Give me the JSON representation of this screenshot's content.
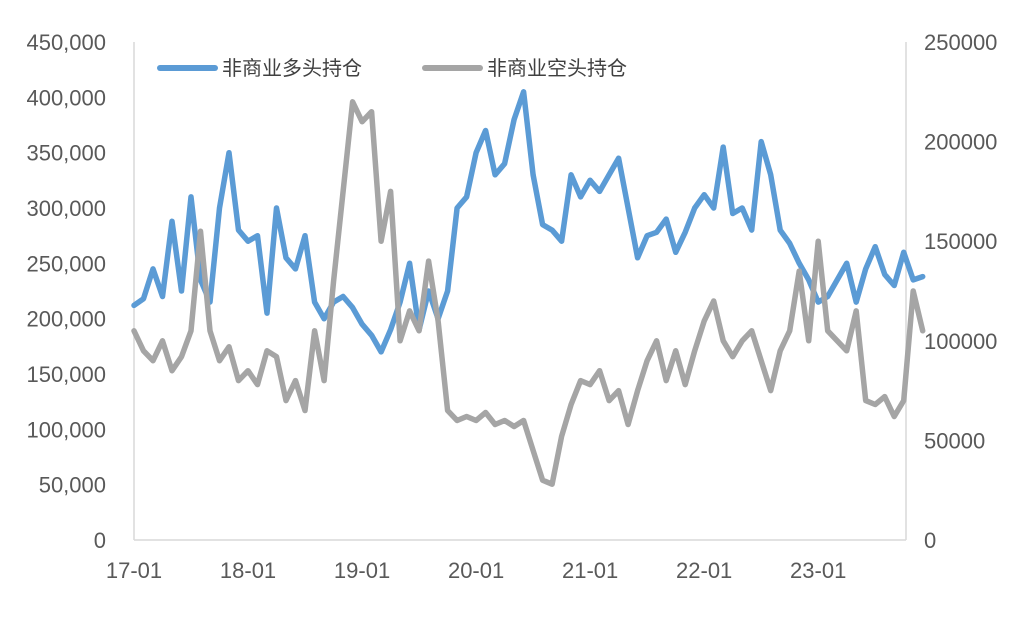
{
  "chart_data": {
    "type": "line",
    "title": "",
    "legend_position": "top-left",
    "grid": false,
    "x_ticks": [
      "17-01",
      "18-01",
      "19-01",
      "20-01",
      "21-01",
      "22-01",
      "23-01"
    ],
    "y_left": {
      "ylim": [
        0,
        450000
      ],
      "tick_labels": [
        "0",
        "50,000",
        "100,000",
        "150,000",
        "200,000",
        "250,000",
        "300,000",
        "350,000",
        "400,000",
        "450,000"
      ]
    },
    "y_right": {
      "ylim": [
        0,
        250000
      ],
      "tick_labels": [
        "0",
        "50000",
        "100000",
        "150000",
        "200000",
        "250000"
      ]
    },
    "series": [
      {
        "name": "非商业多头持仓",
        "axis": "left",
        "color": "#5B9BD5",
        "points": [
          [
            "2017-01",
            212000
          ],
          [
            "2017-02",
            218000
          ],
          [
            "2017-03",
            245000
          ],
          [
            "2017-04",
            220000
          ],
          [
            "2017-05",
            288000
          ],
          [
            "2017-06",
            225000
          ],
          [
            "2017-07",
            310000
          ],
          [
            "2017-08",
            235000
          ],
          [
            "2017-09",
            215000
          ],
          [
            "2017-10",
            300000
          ],
          [
            "2017-11",
            350000
          ],
          [
            "2017-12",
            280000
          ],
          [
            "2018-01",
            270000
          ],
          [
            "2018-02",
            275000
          ],
          [
            "2018-03",
            205000
          ],
          [
            "2018-04",
            300000
          ],
          [
            "2018-05",
            255000
          ],
          [
            "2018-06",
            245000
          ],
          [
            "2018-07",
            275000
          ],
          [
            "2018-08",
            215000
          ],
          [
            "2018-09",
            200000
          ],
          [
            "2018-10",
            215000
          ],
          [
            "2018-11",
            220000
          ],
          [
            "2018-12",
            210000
          ],
          [
            "2019-01",
            195000
          ],
          [
            "2019-02",
            185000
          ],
          [
            "2019-03",
            170000
          ],
          [
            "2019-04",
            190000
          ],
          [
            "2019-05",
            215000
          ],
          [
            "2019-06",
            250000
          ],
          [
            "2019-07",
            190000
          ],
          [
            "2019-08",
            225000
          ],
          [
            "2019-09",
            200000
          ],
          [
            "2019-10",
            225000
          ],
          [
            "2019-11",
            300000
          ],
          [
            "2019-12",
            310000
          ],
          [
            "2020-01",
            350000
          ],
          [
            "2020-02",
            370000
          ],
          [
            "2020-03",
            330000
          ],
          [
            "2020-04",
            340000
          ],
          [
            "2020-05",
            380000
          ],
          [
            "2020-06",
            405000
          ],
          [
            "2020-07",
            330000
          ],
          [
            "2020-08",
            285000
          ],
          [
            "2020-09",
            280000
          ],
          [
            "2020-10",
            270000
          ],
          [
            "2020-11",
            330000
          ],
          [
            "2020-12",
            310000
          ],
          [
            "2021-01",
            325000
          ],
          [
            "2021-02",
            315000
          ],
          [
            "2021-03",
            330000
          ],
          [
            "2021-04",
            345000
          ],
          [
            "2021-05",
            300000
          ],
          [
            "2021-06",
            255000
          ],
          [
            "2021-07",
            275000
          ],
          [
            "2021-08",
            278000
          ],
          [
            "2021-09",
            290000
          ],
          [
            "2021-10",
            260000
          ],
          [
            "2021-11",
            278000
          ],
          [
            "2021-12",
            300000
          ],
          [
            "2022-01",
            312000
          ],
          [
            "2022-02",
            300000
          ],
          [
            "2022-03",
            355000
          ],
          [
            "2022-04",
            295000
          ],
          [
            "2022-05",
            300000
          ],
          [
            "2022-06",
            280000
          ],
          [
            "2022-07",
            360000
          ],
          [
            "2022-08",
            330000
          ],
          [
            "2022-09",
            280000
          ],
          [
            "2022-10",
            268000
          ],
          [
            "2022-11",
            250000
          ],
          [
            "2022-12",
            235000
          ],
          [
            "2023-01",
            215000
          ],
          [
            "2023-02",
            220000
          ],
          [
            "2023-03",
            235000
          ],
          [
            "2023-04",
            250000
          ],
          [
            "2023-05",
            215000
          ],
          [
            "2023-06",
            245000
          ],
          [
            "2023-07",
            265000
          ],
          [
            "2023-08",
            240000
          ],
          [
            "2023-09",
            230000
          ],
          [
            "2023-10",
            260000
          ],
          [
            "2023-11",
            235000
          ],
          [
            "2023-12",
            238000
          ]
        ]
      },
      {
        "name": "非商业空头持仓",
        "axis": "right",
        "color": "#A5A5A5",
        "points": [
          [
            "2017-01",
            105000
          ],
          [
            "2017-02",
            95000
          ],
          [
            "2017-03",
            90000
          ],
          [
            "2017-04",
            100000
          ],
          [
            "2017-05",
            85000
          ],
          [
            "2017-06",
            92000
          ],
          [
            "2017-07",
            105000
          ],
          [
            "2017-08",
            155000
          ],
          [
            "2017-09",
            105000
          ],
          [
            "2017-10",
            90000
          ],
          [
            "2017-11",
            97000
          ],
          [
            "2017-12",
            80000
          ],
          [
            "2018-01",
            85000
          ],
          [
            "2018-02",
            78000
          ],
          [
            "2018-03",
            95000
          ],
          [
            "2018-04",
            92000
          ],
          [
            "2018-05",
            70000
          ],
          [
            "2018-06",
            80000
          ],
          [
            "2018-07",
            65000
          ],
          [
            "2018-08",
            105000
          ],
          [
            "2018-09",
            80000
          ],
          [
            "2018-10",
            130000
          ],
          [
            "2018-11",
            175000
          ],
          [
            "2018-12",
            220000
          ],
          [
            "2019-01",
            210000
          ],
          [
            "2019-02",
            215000
          ],
          [
            "2019-03",
            150000
          ],
          [
            "2019-04",
            175000
          ],
          [
            "2019-05",
            100000
          ],
          [
            "2019-06",
            115000
          ],
          [
            "2019-07",
            105000
          ],
          [
            "2019-08",
            140000
          ],
          [
            "2019-09",
            110000
          ],
          [
            "2019-10",
            65000
          ],
          [
            "2019-11",
            60000
          ],
          [
            "2019-12",
            62000
          ],
          [
            "2020-01",
            60000
          ],
          [
            "2020-02",
            64000
          ],
          [
            "2020-03",
            58000
          ],
          [
            "2020-04",
            60000
          ],
          [
            "2020-05",
            57000
          ],
          [
            "2020-06",
            60000
          ],
          [
            "2020-07",
            45000
          ],
          [
            "2020-08",
            30000
          ],
          [
            "2020-09",
            28000
          ],
          [
            "2020-10",
            52000
          ],
          [
            "2020-11",
            68000
          ],
          [
            "2020-12",
            80000
          ],
          [
            "2021-01",
            78000
          ],
          [
            "2021-02",
            85000
          ],
          [
            "2021-03",
            70000
          ],
          [
            "2021-04",
            75000
          ],
          [
            "2021-05",
            58000
          ],
          [
            "2021-06",
            75000
          ],
          [
            "2021-07",
            90000
          ],
          [
            "2021-08",
            100000
          ],
          [
            "2021-09",
            80000
          ],
          [
            "2021-10",
            95000
          ],
          [
            "2021-11",
            78000
          ],
          [
            "2021-12",
            95000
          ],
          [
            "2022-01",
            110000
          ],
          [
            "2022-02",
            120000
          ],
          [
            "2022-03",
            100000
          ],
          [
            "2022-04",
            92000
          ],
          [
            "2022-05",
            100000
          ],
          [
            "2022-06",
            105000
          ],
          [
            "2022-07",
            90000
          ],
          [
            "2022-08",
            75000
          ],
          [
            "2022-09",
            95000
          ],
          [
            "2022-10",
            105000
          ],
          [
            "2022-11",
            135000
          ],
          [
            "2022-12",
            100000
          ],
          [
            "2023-01",
            150000
          ],
          [
            "2023-02",
            105000
          ],
          [
            "2023-03",
            100000
          ],
          [
            "2023-04",
            95000
          ],
          [
            "2023-05",
            115000
          ],
          [
            "2023-06",
            70000
          ],
          [
            "2023-07",
            68000
          ],
          [
            "2023-08",
            72000
          ],
          [
            "2023-09",
            62000
          ],
          [
            "2023-10",
            70000
          ],
          [
            "2023-11",
            125000
          ],
          [
            "2023-12",
            105000
          ]
        ]
      }
    ]
  }
}
